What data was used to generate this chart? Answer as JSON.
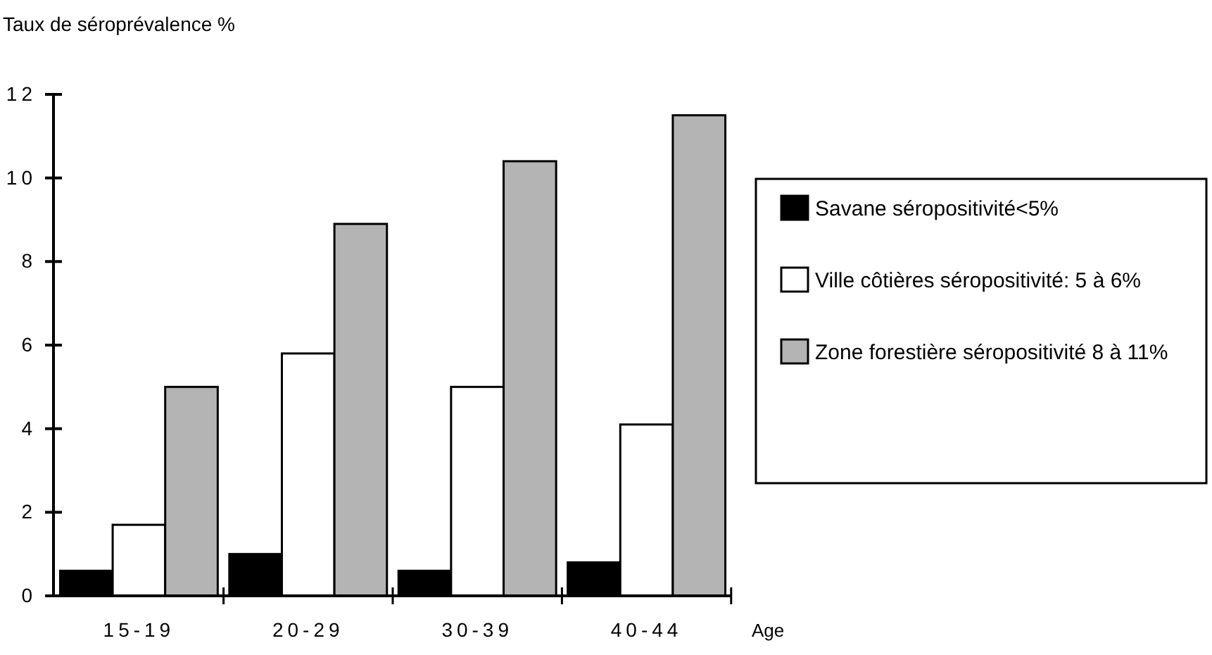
{
  "chart_data": {
    "type": "bar",
    "ylabel": "Taux de séroprévalence %",
    "xlabel": "Age",
    "categories": [
      "15-19",
      "20-29",
      "30-39",
      "40-44"
    ],
    "series": [
      {
        "name": "Savane séropositivité<5%",
        "color": "#000000",
        "values": [
          0.6,
          1.0,
          0.6,
          0.8
        ]
      },
      {
        "name": "Ville côtières séropositivité: 5 à 6%",
        "color": "#ffffff",
        "values": [
          1.7,
          5.8,
          5.0,
          4.1
        ]
      },
      {
        "name": "Zone forestière séropositivité 8 à 11%",
        "color": "#b4b4b4",
        "values": [
          5.0,
          8.9,
          10.4,
          11.5
        ]
      }
    ],
    "ylim": [
      0,
      12
    ],
    "yticks": [
      0,
      2,
      4,
      6,
      8,
      10,
      12
    ],
    "grid": false,
    "legend": "right"
  }
}
